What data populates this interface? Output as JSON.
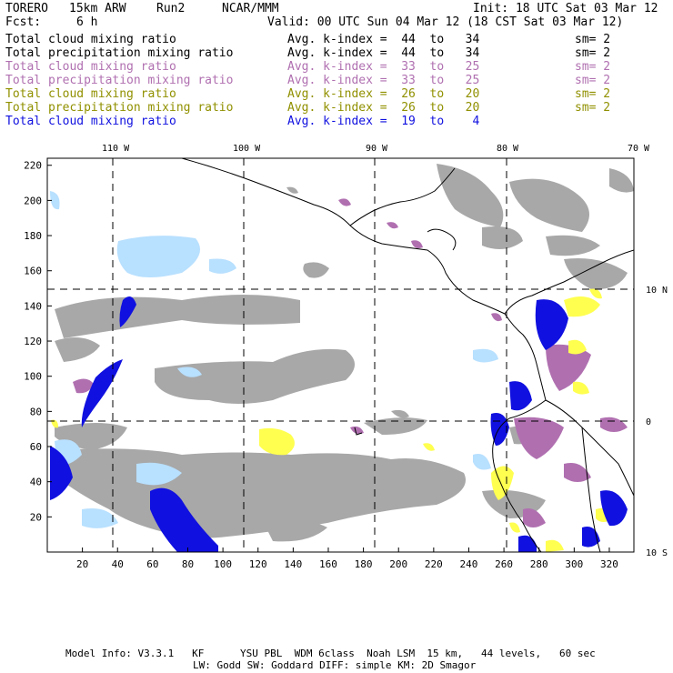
{
  "header": {
    "model": "TORERO",
    "resolution": "15km ARW",
    "run": "Run2",
    "org": "NCAR/MMM",
    "init": "Init: 18 UTC Sat 03 Mar 12",
    "fcst_label": "Fcst:",
    "fcst_value": "6 h",
    "valid": "Valid: 00 UTC Sun 04 Mar 12 (18 CST Sat 03 Mar 12)"
  },
  "legend": [
    {
      "field": "Total cloud mixing ratio",
      "kindex": "Avg. k-index =  44  to   34",
      "sm": "sm= 2",
      "color": "#000000"
    },
    {
      "field": "Total precipitation mixing ratio",
      "kindex": "Avg. k-index =  44  to   34",
      "sm": "sm= 2",
      "color": "#000000"
    },
    {
      "field": "Total cloud mixing ratio",
      "kindex": "Avg. k-index =  33  to   25",
      "sm": "sm= 2",
      "color": "#b070b0"
    },
    {
      "field": "Total precipitation mixing ratio",
      "kindex": "Avg. k-index =  33  to   25",
      "sm": "sm= 2",
      "color": "#b070b0"
    },
    {
      "field": "Total cloud mixing ratio",
      "kindex": "Avg. k-index =  26  to   20",
      "sm": "sm= 2",
      "color": "#909000"
    },
    {
      "field": "Total precipitation mixing ratio",
      "kindex": "Avg. k-index =  26  to   20",
      "sm": "sm= 2",
      "color": "#909000"
    },
    {
      "field": "Total cloud mixing ratio",
      "kindex": "Avg. k-index =  19  to    4",
      "sm": "",
      "color": "#1010e0"
    }
  ],
  "map": {
    "lon_labels": [
      "110 W",
      "100 W",
      "90 W",
      "80 W",
      "70 W"
    ],
    "lat_labels": [
      "10 N",
      "0",
      "10 S"
    ],
    "x_ticks": [
      "20",
      "40",
      "60",
      "80",
      "100",
      "120",
      "140",
      "160",
      "180",
      "200",
      "220",
      "240",
      "260",
      "280",
      "300",
      "320"
    ],
    "y_ticks": [
      "220",
      "200",
      "180",
      "160",
      "140",
      "120",
      "100",
      "80",
      "60",
      "40",
      "20"
    ],
    "colors": {
      "cloud_gray": "#a8a8a8",
      "purple": "#b070b0",
      "yellow": "#ffff50",
      "blue_dark": "#1010e0",
      "blue_light": "#b8e0ff"
    }
  },
  "footer": {
    "line1": "Model Info: V3.3.1   KF      YSU PBL  WDM 6class  Noah LSM  15 km,   44 levels,   60 sec",
    "line2": "LW: Godd SW: Goddard DIFF: simple KM: 2D Smagor"
  }
}
